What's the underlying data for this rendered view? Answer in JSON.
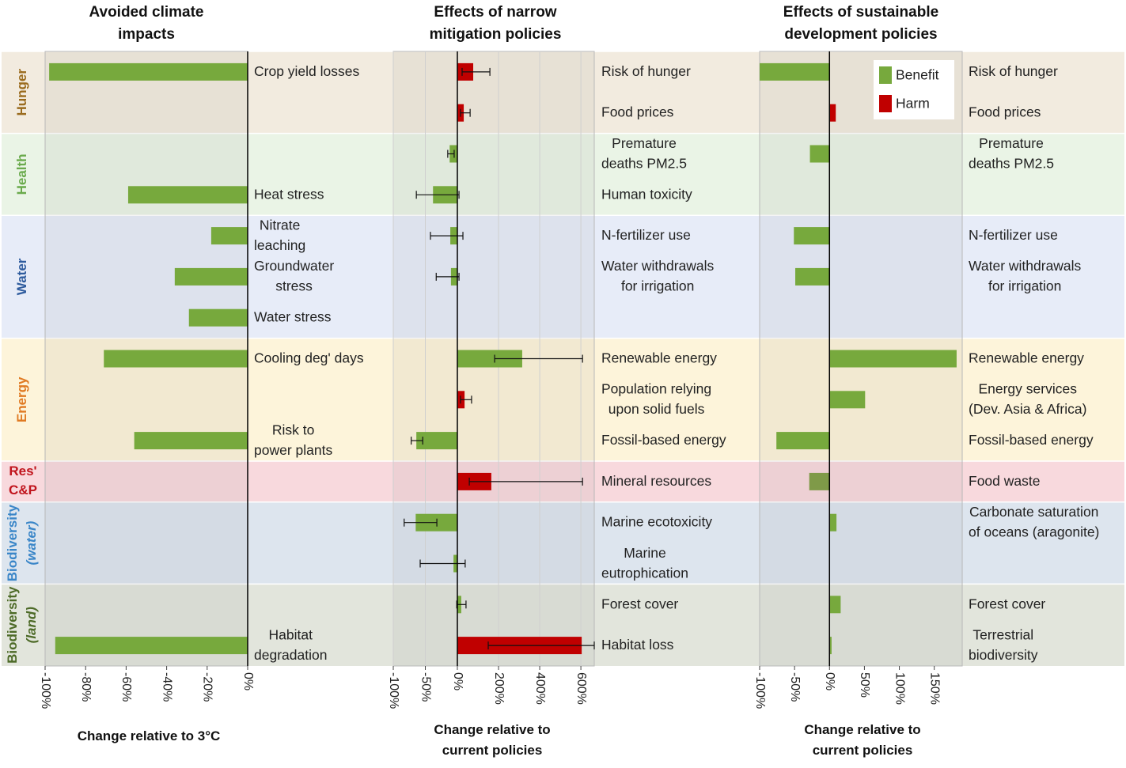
{
  "row_groups": [
    {
      "label": "Hunger",
      "rows": 2,
      "color": "#9a6b1e",
      "background": "#f2ebdf"
    },
    {
      "label": "Health",
      "rows": 2,
      "color": "#6aaa4c",
      "background": "#eaf4e6"
    },
    {
      "label": "Water",
      "rows": 3,
      "color": "#2f5c9e",
      "background": "#e7ecf8"
    },
    {
      "label": "Energy",
      "rows": 3,
      "color": "#e07a22",
      "background": "#fdf4da"
    },
    {
      "label": "Res'\nC&P",
      "rows": 1,
      "color": "#c0141c",
      "background": "#f8d9dd"
    },
    {
      "label": "Biodiversity\n(water)",
      "rows": 2,
      "color": "#3a86c8",
      "background": "#dde5ee"
    },
    {
      "label": "Biodiversity\n(land)",
      "rows": 2,
      "color": "#4d6a27",
      "background": "#e2e5dc"
    }
  ],
  "legend": [
    {
      "name": "Benefit",
      "color": "#77a93d"
    },
    {
      "name": "Harm",
      "color": "#c00000"
    }
  ],
  "chart_data": [
    {
      "type": "bar",
      "orientation": "horizontal",
      "title": "Avoided climate\nimpacts",
      "x_label": "Change relative to 3°C",
      "categories": [
        "Crop yield losses",
        null,
        null,
        "Heat stress",
        "Nitrate\nleaching",
        "Groundwater\nstress",
        "Water stress",
        "Cooling deg' days",
        null,
        "Risk to\npower plants",
        null,
        null,
        null,
        null,
        "Habitat\ndegradation"
      ],
      "values": [
        -98,
        null,
        null,
        -59,
        -18,
        -36,
        -29,
        -71,
        null,
        -56,
        null,
        null,
        null,
        null,
        -95
      ],
      "colors": [
        "#77a93d",
        null,
        null,
        "#77a93d",
        "#77a93d",
        "#77a93d",
        "#77a93d",
        "#77a93d",
        null,
        "#77a93d",
        null,
        null,
        null,
        null,
        "#77a93d"
      ],
      "xscale": "linear",
      "xlim": [
        -100,
        0
      ],
      "xticks": [
        {
          "value": -100,
          "label": "-100%"
        },
        {
          "value": -80,
          "label": "-80%"
        },
        {
          "value": -60,
          "label": "-60%"
        },
        {
          "value": -40,
          "label": "-40%"
        },
        {
          "value": -20,
          "label": "-20%"
        },
        {
          "value": 0,
          "label": "0%"
        }
      ],
      "grid": false
    },
    {
      "type": "bar",
      "orientation": "horizontal",
      "title": "Effects of narrow\nmitigation policies",
      "x_label": "Change relative to\ncurrent policies",
      "categories": [
        "Risk of hunger",
        "Food prices",
        "Premature\ndeaths PM2.5",
        "Human toxicity",
        "N-fertilizer use",
        "Water withdrawals\nfor irrigation",
        null,
        "Renewable energy",
        "Population relying\nupon solid fuels",
        "Fossil-based energy",
        "Mineral resources",
        "Marine ecotoxicity",
        "Marine\neutrophication",
        "Forest cover",
        "Habitat loss"
      ],
      "values": [
        77,
        31,
        -12,
        -38,
        -11,
        -10,
        null,
        315,
        35,
        -64,
        165,
        -65,
        -6,
        19,
        604
      ],
      "error_low": [
        23,
        15,
        -15,
        -64,
        -42,
        -33,
        null,
        181,
        15,
        -72,
        58,
        -83,
        -58,
        -1,
        150
      ],
      "error_high": [
        158,
        62,
        -5,
        8,
        27,
        8,
        null,
        608,
        69,
        -54,
        608,
        -32,
        38,
        42,
        665
      ],
      "colors": [
        "#c00000",
        "#c00000",
        "#77a93d",
        "#77a93d",
        "#77a93d",
        "#77a93d",
        null,
        "#77a93d",
        "#c00000",
        "#77a93d",
        "#c00000",
        "#77a93d",
        "#77a93d",
        "#77a93d",
        "#c00000"
      ],
      "xscale": "split",
      "xlim": [
        -100,
        665
      ],
      "xticks": [
        {
          "value": -100,
          "label": "-100%"
        },
        {
          "value": -50,
          "label": "-50%"
        },
        {
          "value": 0,
          "label": "0%"
        },
        {
          "value": 200,
          "label": "200%"
        },
        {
          "value": 400,
          "label": "400%"
        },
        {
          "value": 600,
          "label": "600%"
        }
      ],
      "grid": true
    },
    {
      "type": "bar",
      "orientation": "horizontal",
      "title": "Effects of sustainable\ndevelopment policies",
      "x_label": "Change relative to\ncurrent policies",
      "categories": [
        "Risk of hunger",
        "Food prices",
        "Premature\ndeaths PM2.5",
        null,
        "N-fertilizer use",
        "Water withdrawals\nfor irrigation",
        null,
        "Renewable energy",
        "Energy services\n(Dev. Asia & Africa)",
        "Fossil-based energy",
        "Food waste",
        "Carbonate saturation\nof oceans (aragonite)",
        null,
        "Forest cover",
        "Terrestrial\nbiodiversity"
      ],
      "values": [
        -100,
        9,
        -28,
        null,
        -51,
        -49,
        null,
        182,
        51,
        -76,
        -29,
        10,
        null,
        16,
        3
      ],
      "colors": [
        "#77a93d",
        "#c00000",
        "#77a93d",
        null,
        "#77a93d",
        "#77a93d",
        null,
        "#77a93d",
        "#77a93d",
        "#77a93d",
        "#7f9a48",
        "#77a93d",
        null,
        "#77a93d",
        "#77a93d"
      ],
      "xscale": "linear",
      "xlim": [
        -100,
        190
      ],
      "xticks": [
        {
          "value": -100,
          "label": "-100%"
        },
        {
          "value": -50,
          "label": "-50%"
        },
        {
          "value": 0,
          "label": "0%"
        },
        {
          "value": 50,
          "label": "50%"
        },
        {
          "value": 100,
          "label": "100%"
        },
        {
          "value": 150,
          "label": "150%"
        }
      ],
      "grid": false
    }
  ]
}
